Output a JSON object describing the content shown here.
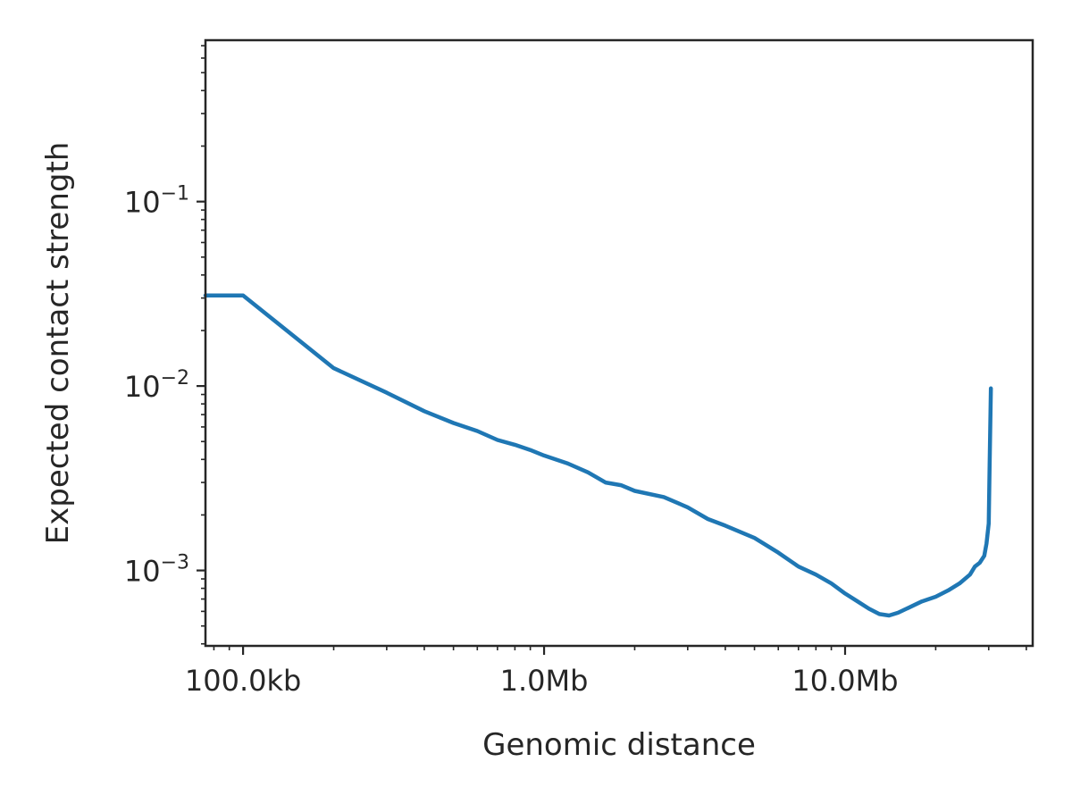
{
  "chart_data": {
    "type": "line",
    "title": "",
    "xlabel": "Genomic distance",
    "ylabel": "Expected contact strength",
    "xscale": "log",
    "yscale": "log",
    "xlim": [
      75000,
      42000000
    ],
    "ylim": [
      0.00039,
      0.75
    ],
    "grid": false,
    "legend": "none",
    "x_ticks": [
      {
        "value": 100000,
        "label": "100.0kb"
      },
      {
        "value": 1000000,
        "label": "1.0Mb"
      },
      {
        "value": 10000000,
        "label": "10.0Mb"
      }
    ],
    "y_ticks": [
      {
        "value": 0.001,
        "base": "10",
        "exp": "−3"
      },
      {
        "value": 0.01,
        "base": "10",
        "exp": "−2"
      },
      {
        "value": 0.1,
        "base": "10",
        "exp": "−1"
      }
    ],
    "colors": {
      "line": "#1f77b4",
      "axis": "#262626"
    },
    "series": [
      {
        "x": [
          75000,
          100000,
          200000,
          300000,
          400000,
          500000,
          600000,
          700000,
          800000,
          900000,
          1000000,
          1200000,
          1400000,
          1600000,
          1800000,
          2000000,
          2500000,
          3000000,
          3500000,
          4000000,
          5000000,
          6000000,
          7000000,
          8000000,
          9000000,
          10000000,
          11000000,
          12000000,
          13000000,
          14000000,
          15000000,
          16000000,
          17000000,
          18000000,
          20000000,
          22000000,
          24000000,
          26000000,
          27000000,
          28000000,
          29000000,
          29500000,
          30000000,
          30200000,
          30500000
        ],
        "y": [
          0.031,
          0.031,
          0.0125,
          0.0092,
          0.0073,
          0.0063,
          0.0057,
          0.0051,
          0.0048,
          0.0045,
          0.0042,
          0.0038,
          0.0034,
          0.003,
          0.0029,
          0.0027,
          0.0025,
          0.0022,
          0.0019,
          0.00175,
          0.0015,
          0.00125,
          0.00105,
          0.00095,
          0.00085,
          0.00075,
          0.00068,
          0.00062,
          0.00058,
          0.00057,
          0.00059,
          0.00062,
          0.00065,
          0.00068,
          0.00072,
          0.00078,
          0.00085,
          0.00095,
          0.00105,
          0.0011,
          0.0012,
          0.0014,
          0.0018,
          0.0035,
          0.0097
        ]
      }
    ]
  }
}
